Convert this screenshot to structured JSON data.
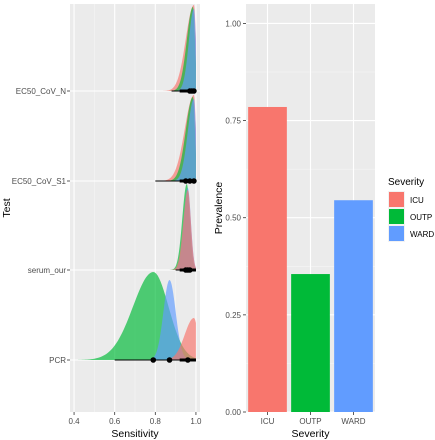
{
  "chart_data": [
    {
      "type": "ridgeline",
      "xlabel": "Sensitivity",
      "ylabel": "Test",
      "xlim": [
        0.38,
        1.02
      ],
      "x_ticks": [
        "0.4",
        "0.6",
        "0.8",
        "1.0"
      ],
      "x_tick_values": [
        0.4,
        0.6,
        0.8,
        1.0
      ],
      "grid": true,
      "categories": [
        "PCR",
        "serum_our",
        "EC50_CoV_S1",
        "EC50_CoV_N"
      ],
      "series_colors": {
        "ICU": "#F8766D",
        "OUTP": "#00BA38",
        "WARD": "#619CFF"
      },
      "density_modes": {
        "PCR": {
          "ICU": 0.99,
          "OUTP": 0.79,
          "WARD": 0.87
        },
        "serum_our": {
          "ICU": 0.96,
          "OUTP": 0.955,
          "WARD": 0.96
        },
        "EC50_CoV_S1": {
          "ICU": 0.99,
          "OUTP": 0.985,
          "WARD": 0.99
        },
        "EC50_CoV_N": {
          "ICU": 0.99,
          "OUTP": 0.985,
          "WARD": 0.99
        }
      },
      "point_estimates": {
        "PCR": [
          0.79,
          0.87,
          0.96
        ],
        "serum_our": [
          0.95,
          0.96,
          0.97
        ],
        "EC50_CoV_S1": [
          0.95,
          0.97,
          0.99
        ],
        "EC50_CoV_N": [
          0.97,
          0.98,
          0.99
        ]
      },
      "interval_ranges": {
        "PCR": [
          0.6,
          1.0
        ],
        "serum_our": [
          0.9,
          1.0
        ],
        "EC50_CoV_S1": [
          0.8,
          1.0
        ],
        "EC50_CoV_N": [
          0.88,
          1.0
        ]
      }
    },
    {
      "type": "bar",
      "xlabel": "Severity",
      "ylabel": "Prevalence",
      "categories": [
        "ICU",
        "OUTP",
        "WARD"
      ],
      "values": [
        0.785,
        0.355,
        0.545
      ],
      "colors": [
        "#F8766D",
        "#00BA38",
        "#619CFF"
      ],
      "ylim": [
        0,
        1.05
      ],
      "y_ticks": [
        "0.00",
        "0.25",
        "0.50",
        "0.75",
        "1.00"
      ],
      "y_tick_values": [
        0,
        0.25,
        0.5,
        0.75,
        1.0
      ],
      "grid": true,
      "legend": {
        "title": "Severity",
        "items": [
          "ICU",
          "OUTP",
          "WARD"
        ],
        "colors": [
          "#F8766D",
          "#00BA38",
          "#619CFF"
        ],
        "placement": "right"
      }
    }
  ]
}
